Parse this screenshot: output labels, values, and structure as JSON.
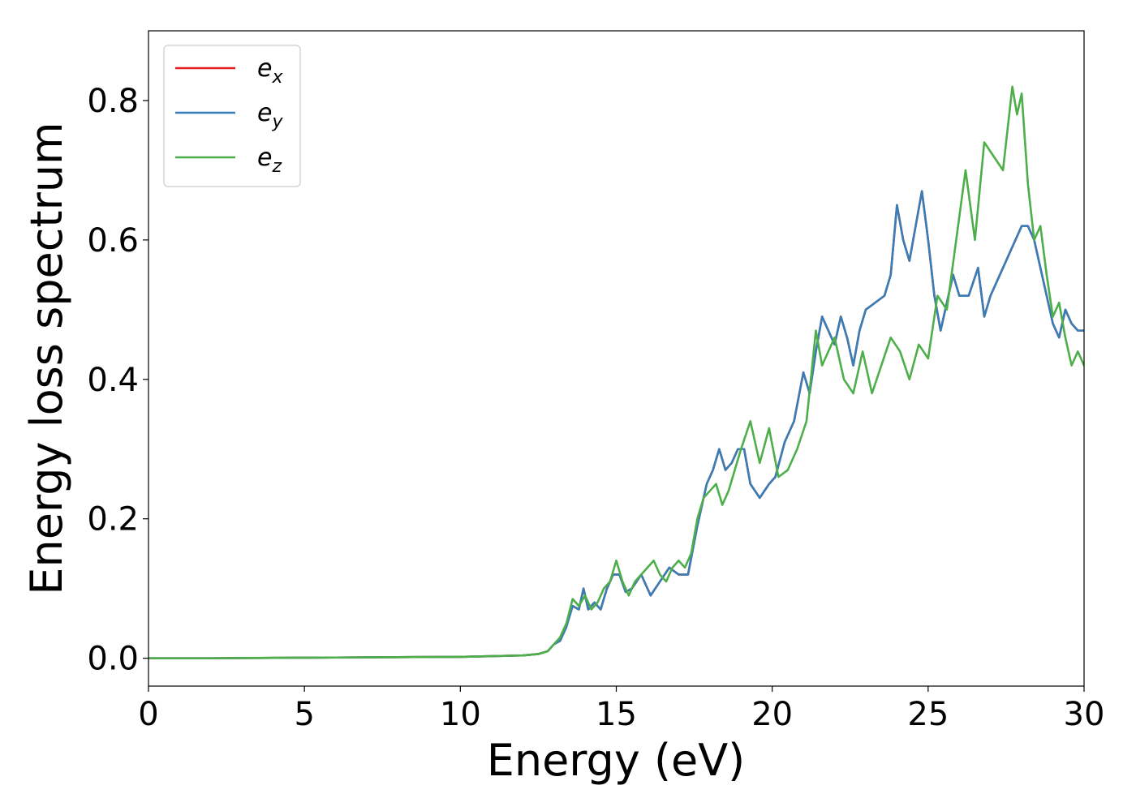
{
  "chart_data": {
    "type": "line",
    "title": "",
    "xlabel": "Energy (eV)",
    "ylabel": "Energy loss spectrum",
    "xlim": [
      0,
      30
    ],
    "ylim": [
      -0.04,
      0.9
    ],
    "x_ticks": [
      "0",
      "5",
      "10",
      "15",
      "20",
      "25",
      "30"
    ],
    "y_ticks": [
      "0.0",
      "0.2",
      "0.4",
      "0.6",
      "0.8"
    ],
    "grid": false,
    "legend_position": "top-left",
    "series": [
      {
        "name": "e",
        "subscript": "x",
        "color": "#e41a1c",
        "x": [
          0,
          2,
          4,
          6,
          8,
          10,
          11,
          12,
          12.5,
          12.8,
          13.0,
          13.2,
          13.4,
          13.6,
          13.8,
          13.95,
          14.1,
          14.3,
          14.5,
          14.7,
          14.9,
          15.1,
          15.3,
          15.5,
          15.8,
          16.1,
          16.4,
          16.7,
          17.0,
          17.3,
          17.6,
          17.9,
          18.1,
          18.3,
          18.5,
          18.7,
          18.9,
          19.1,
          19.3,
          19.6,
          19.9,
          20.1,
          20.4,
          20.7,
          21.0,
          21.2,
          21.4,
          21.6,
          21.8,
          22.0,
          22.2,
          22.4,
          22.6,
          22.8,
          23.0,
          23.3,
          23.6,
          23.8,
          24.0,
          24.2,
          24.4,
          24.6,
          24.8,
          25.0,
          25.2,
          25.4,
          25.6,
          25.8,
          26.0,
          26.3,
          26.6,
          26.8,
          27.0,
          27.2,
          27.4,
          27.6,
          27.8,
          28.0,
          28.2,
          28.4,
          28.6,
          28.8,
          29.0,
          29.2,
          29.4,
          29.6,
          29.8,
          30.0
        ],
        "values": [
          0.0,
          0.0,
          0.0005,
          0.001,
          0.0015,
          0.002,
          0.003,
          0.004,
          0.006,
          0.01,
          0.02,
          0.025,
          0.045,
          0.075,
          0.07,
          0.1,
          0.07,
          0.08,
          0.07,
          0.1,
          0.12,
          0.12,
          0.095,
          0.1,
          0.12,
          0.09,
          0.11,
          0.13,
          0.12,
          0.12,
          0.19,
          0.25,
          0.27,
          0.3,
          0.27,
          0.28,
          0.3,
          0.3,
          0.25,
          0.23,
          0.25,
          0.26,
          0.31,
          0.34,
          0.41,
          0.38,
          0.44,
          0.49,
          0.47,
          0.45,
          0.49,
          0.46,
          0.42,
          0.47,
          0.5,
          0.51,
          0.52,
          0.55,
          0.65,
          0.6,
          0.57,
          0.62,
          0.67,
          0.6,
          0.52,
          0.47,
          0.51,
          0.55,
          0.52,
          0.52,
          0.56,
          0.49,
          0.52,
          0.54,
          0.56,
          0.58,
          0.6,
          0.62,
          0.62,
          0.6,
          0.56,
          0.52,
          0.48,
          0.46,
          0.5,
          0.48,
          0.47,
          0.47
        ]
      },
      {
        "name": "e",
        "subscript": "y",
        "color": "#377eb8",
        "x": [
          0,
          2,
          4,
          6,
          8,
          10,
          11,
          12,
          12.5,
          12.8,
          13.0,
          13.2,
          13.4,
          13.6,
          13.8,
          13.95,
          14.1,
          14.3,
          14.5,
          14.7,
          14.9,
          15.1,
          15.3,
          15.5,
          15.8,
          16.1,
          16.4,
          16.7,
          17.0,
          17.3,
          17.6,
          17.9,
          18.1,
          18.3,
          18.5,
          18.7,
          18.9,
          19.1,
          19.3,
          19.6,
          19.9,
          20.1,
          20.4,
          20.7,
          21.0,
          21.2,
          21.4,
          21.6,
          21.8,
          22.0,
          22.2,
          22.4,
          22.6,
          22.8,
          23.0,
          23.3,
          23.6,
          23.8,
          24.0,
          24.2,
          24.4,
          24.6,
          24.8,
          25.0,
          25.2,
          25.4,
          25.6,
          25.8,
          26.0,
          26.3,
          26.6,
          26.8,
          27.0,
          27.2,
          27.4,
          27.6,
          27.8,
          28.0,
          28.2,
          28.4,
          28.6,
          28.8,
          29.0,
          29.2,
          29.4,
          29.6,
          29.8,
          30.0
        ],
        "values": [
          0.0,
          0.0,
          0.0005,
          0.001,
          0.0015,
          0.002,
          0.003,
          0.004,
          0.006,
          0.01,
          0.02,
          0.025,
          0.045,
          0.075,
          0.07,
          0.1,
          0.07,
          0.08,
          0.07,
          0.1,
          0.12,
          0.12,
          0.095,
          0.1,
          0.12,
          0.09,
          0.11,
          0.13,
          0.12,
          0.12,
          0.19,
          0.25,
          0.27,
          0.3,
          0.27,
          0.28,
          0.3,
          0.3,
          0.25,
          0.23,
          0.25,
          0.26,
          0.31,
          0.34,
          0.41,
          0.38,
          0.44,
          0.49,
          0.47,
          0.45,
          0.49,
          0.46,
          0.42,
          0.47,
          0.5,
          0.51,
          0.52,
          0.55,
          0.65,
          0.6,
          0.57,
          0.62,
          0.67,
          0.6,
          0.52,
          0.47,
          0.51,
          0.55,
          0.52,
          0.52,
          0.56,
          0.49,
          0.52,
          0.54,
          0.56,
          0.58,
          0.6,
          0.62,
          0.62,
          0.6,
          0.56,
          0.52,
          0.48,
          0.46,
          0.5,
          0.48,
          0.47,
          0.47
        ]
      },
      {
        "name": "e",
        "subscript": "z",
        "color": "#4daf4a",
        "x": [
          0,
          2,
          4,
          6,
          8,
          10,
          11,
          12,
          12.5,
          12.8,
          13.0,
          13.2,
          13.4,
          13.6,
          13.8,
          14.0,
          14.2,
          14.4,
          14.6,
          14.8,
          15.0,
          15.2,
          15.4,
          15.6,
          15.8,
          16.0,
          16.2,
          16.4,
          16.6,
          16.8,
          17.0,
          17.2,
          17.4,
          17.6,
          17.8,
          18.0,
          18.2,
          18.4,
          18.6,
          18.8,
          19.0,
          19.3,
          19.6,
          19.9,
          20.2,
          20.5,
          20.8,
          21.1,
          21.4,
          21.6,
          21.8,
          22.0,
          22.3,
          22.6,
          22.9,
          23.2,
          23.5,
          23.8,
          24.1,
          24.4,
          24.7,
          25.0,
          25.3,
          25.6,
          25.9,
          26.2,
          26.5,
          26.8,
          27.1,
          27.4,
          27.7,
          27.85,
          28.0,
          28.2,
          28.4,
          28.6,
          28.8,
          29.0,
          29.2,
          29.4,
          29.6,
          29.8,
          30.0
        ],
        "values": [
          0.0,
          0.0,
          0.0005,
          0.001,
          0.0015,
          0.002,
          0.003,
          0.004,
          0.006,
          0.01,
          0.02,
          0.03,
          0.05,
          0.085,
          0.075,
          0.09,
          0.07,
          0.08,
          0.1,
          0.11,
          0.14,
          0.11,
          0.09,
          0.11,
          0.12,
          0.13,
          0.14,
          0.12,
          0.11,
          0.13,
          0.14,
          0.13,
          0.15,
          0.2,
          0.23,
          0.24,
          0.25,
          0.22,
          0.24,
          0.27,
          0.3,
          0.34,
          0.28,
          0.33,
          0.26,
          0.27,
          0.3,
          0.34,
          0.47,
          0.42,
          0.44,
          0.46,
          0.4,
          0.38,
          0.44,
          0.38,
          0.42,
          0.46,
          0.44,
          0.4,
          0.45,
          0.43,
          0.52,
          0.5,
          0.6,
          0.7,
          0.6,
          0.74,
          0.72,
          0.7,
          0.82,
          0.78,
          0.81,
          0.68,
          0.6,
          0.62,
          0.55,
          0.49,
          0.51,
          0.46,
          0.42,
          0.44,
          0.42
        ]
      }
    ]
  }
}
